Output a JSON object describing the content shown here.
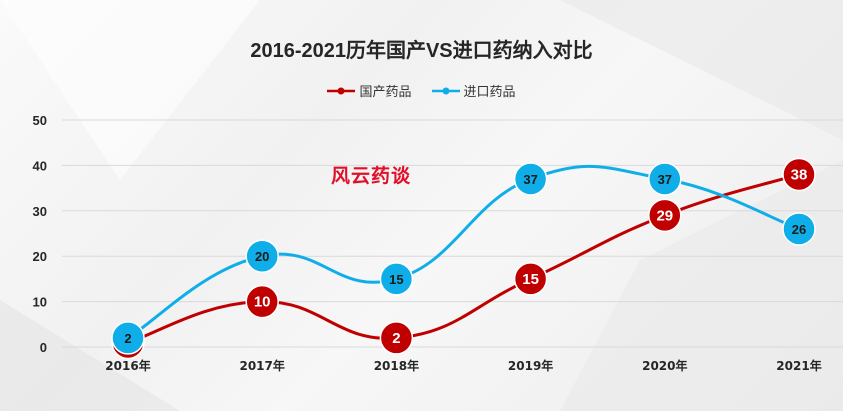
{
  "chart_data": {
    "type": "line",
    "title": "2016-2021历年国产VS进口药纳入对比",
    "categories": [
      "2016年",
      "2017年",
      "2018年",
      "2019年",
      "2020年",
      "2021年"
    ],
    "yticks": [
      "0",
      "10",
      "20",
      "30",
      "40",
      "50"
    ],
    "ylim": [
      0,
      50
    ],
    "grid": true,
    "legend_position": "top-center",
    "smooth": true,
    "series": [
      {
        "name": "国产药品",
        "color": "#c00000",
        "values": [
          1,
          10,
          2,
          15,
          29,
          38
        ],
        "labels": [
          "1",
          "10",
          "2",
          "15",
          "29",
          "38"
        ]
      },
      {
        "name": "进口药品",
        "color": "#10aee8",
        "values": [
          2,
          20,
          15,
          37,
          37,
          26
        ],
        "labels": [
          "2",
          "20",
          "15",
          "37",
          "37",
          "26"
        ]
      }
    ]
  },
  "watermark": "风云药谈"
}
